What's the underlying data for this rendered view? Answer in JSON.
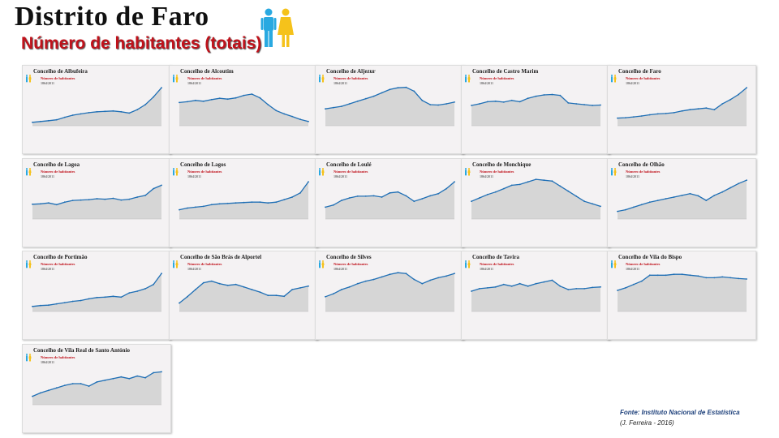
{
  "title": "Distrito de Faro",
  "subtitle": "Número de habitantes (totais)",
  "source": "Fonte: Instituto Nacional de Estatística",
  "author": "(J. Ferreira - 2016)",
  "colors": {
    "line": "#1f6fb5",
    "area": "#d6d6d6",
    "subtitle": "#c0121b",
    "male_icon": "#29a9e1",
    "female_icon": "#f5c21b"
  },
  "chart_data": [
    {
      "type": "area",
      "title": "Concelho de Albufeira",
      "subtitle": "Número de habitantes",
      "range_label": "1864/2011",
      "values": [
        8,
        10,
        12,
        14,
        20,
        25,
        28,
        31,
        33,
        34,
        35,
        33,
        30,
        38,
        50,
        68,
        90
      ]
    },
    {
      "type": "area",
      "title": "Concelho de Alcoutim",
      "subtitle": "Número de habitantes",
      "range_label": "1864/2011",
      "values": [
        55,
        57,
        60,
        58,
        62,
        65,
        63,
        66,
        72,
        75,
        66,
        50,
        36,
        28,
        22,
        15,
        10
      ]
    },
    {
      "type": "area",
      "title": "Concelho de Aljezur",
      "subtitle": "Número de habitantes",
      "range_label": "1864/2011",
      "values": [
        40,
        43,
        46,
        52,
        58,
        64,
        70,
        78,
        86,
        90,
        91,
        82,
        60,
        50,
        49,
        52,
        56
      ]
    },
    {
      "type": "area",
      "title": "Concelho de Castro Marim",
      "subtitle": "Número de habitantes",
      "range_label": "1864/2011",
      "values": [
        48,
        52,
        57,
        58,
        56,
        60,
        57,
        65,
        70,
        73,
        74,
        72,
        54,
        52,
        50,
        48,
        49
      ]
    },
    {
      "type": "area",
      "title": "Concelho de Faro",
      "subtitle": "Número de habitantes",
      "range_label": "1864/2011",
      "values": [
        18,
        19,
        21,
        23,
        26,
        28,
        29,
        31,
        35,
        38,
        40,
        42,
        38,
        52,
        62,
        74,
        90
      ]
    },
    {
      "type": "area",
      "title": "Concelho de Lagoa",
      "subtitle": "Número de habitantes",
      "range_label": "1864/2011",
      "values": [
        35,
        36,
        38,
        34,
        40,
        44,
        45,
        46,
        48,
        47,
        49,
        45,
        47,
        52,
        56,
        72,
        80
      ]
    },
    {
      "type": "area",
      "title": "Concelho de Lagos",
      "subtitle": "Número de habitantes",
      "range_label": "1864/2011",
      "values": [
        22,
        26,
        28,
        30,
        34,
        36,
        37,
        38,
        39,
        40,
        40,
        38,
        40,
        46,
        52,
        62,
        88
      ]
    },
    {
      "type": "area",
      "title": "Concelho de Loulé",
      "subtitle": "Número de habitantes",
      "range_label": "1864/2011",
      "values": [
        28,
        33,
        44,
        50,
        54,
        54,
        55,
        52,
        62,
        64,
        55,
        42,
        48,
        55,
        60,
        72,
        88
      ]
    },
    {
      "type": "area",
      "title": "Concelho de Monchique",
      "subtitle": "Número de habitantes",
      "range_label": "1864/2011",
      "values": [
        42,
        50,
        58,
        64,
        72,
        80,
        82,
        88,
        94,
        92,
        90,
        78,
        66,
        54,
        42,
        36,
        30
      ]
    },
    {
      "type": "area",
      "title": "Concelho de Olhão",
      "subtitle": "Número de habitantes",
      "range_label": "1864/2011",
      "values": [
        18,
        22,
        28,
        34,
        40,
        44,
        48,
        52,
        56,
        60,
        55,
        44,
        56,
        64,
        74,
        84,
        92
      ]
    },
    {
      "type": "area",
      "title": "Concelho de Portimão",
      "subtitle": "Número de habitantes",
      "range_label": "1864/2011",
      "values": [
        12,
        14,
        15,
        18,
        21,
        24,
        26,
        30,
        33,
        34,
        36,
        34,
        44,
        48,
        54,
        64,
        90
      ]
    },
    {
      "type": "area",
      "title": "Concelho de São Brás de Alportel",
      "subtitle": "Número de habitantes",
      "range_label": "1864/2011",
      "values": [
        20,
        35,
        52,
        68,
        72,
        66,
        62,
        64,
        58,
        52,
        46,
        38,
        38,
        36,
        52,
        56,
        60
      ]
    },
    {
      "type": "area",
      "title": "Concelho de Silves",
      "subtitle": "Número de habitantes",
      "range_label": "1864/2011",
      "values": [
        35,
        42,
        52,
        58,
        66,
        72,
        76,
        82,
        88,
        92,
        90,
        76,
        66,
        74,
        80,
        84,
        90
      ]
    },
    {
      "type": "area",
      "title": "Concelho de Tavira",
      "subtitle": "Número de habitantes",
      "range_label": "1864/2011",
      "values": [
        48,
        54,
        56,
        58,
        64,
        60,
        66,
        60,
        66,
        70,
        74,
        60,
        52,
        54,
        54,
        57,
        58
      ]
    },
    {
      "type": "area",
      "title": "Concelho de Vila do Bispo",
      "subtitle": "Número de habitantes",
      "range_label": "1864/2011",
      "values": [
        50,
        56,
        64,
        72,
        86,
        86,
        86,
        88,
        88,
        86,
        84,
        80,
        80,
        82,
        80,
        78,
        77
      ]
    },
    {
      "type": "area",
      "title": "Concelho de Vila Real de Santo António",
      "subtitle": "Número de habitantes",
      "range_label": "1864/2011",
      "values": [
        20,
        28,
        34,
        40,
        46,
        50,
        50,
        44,
        54,
        58,
        62,
        66,
        62,
        68,
        64,
        76,
        78
      ]
    }
  ]
}
